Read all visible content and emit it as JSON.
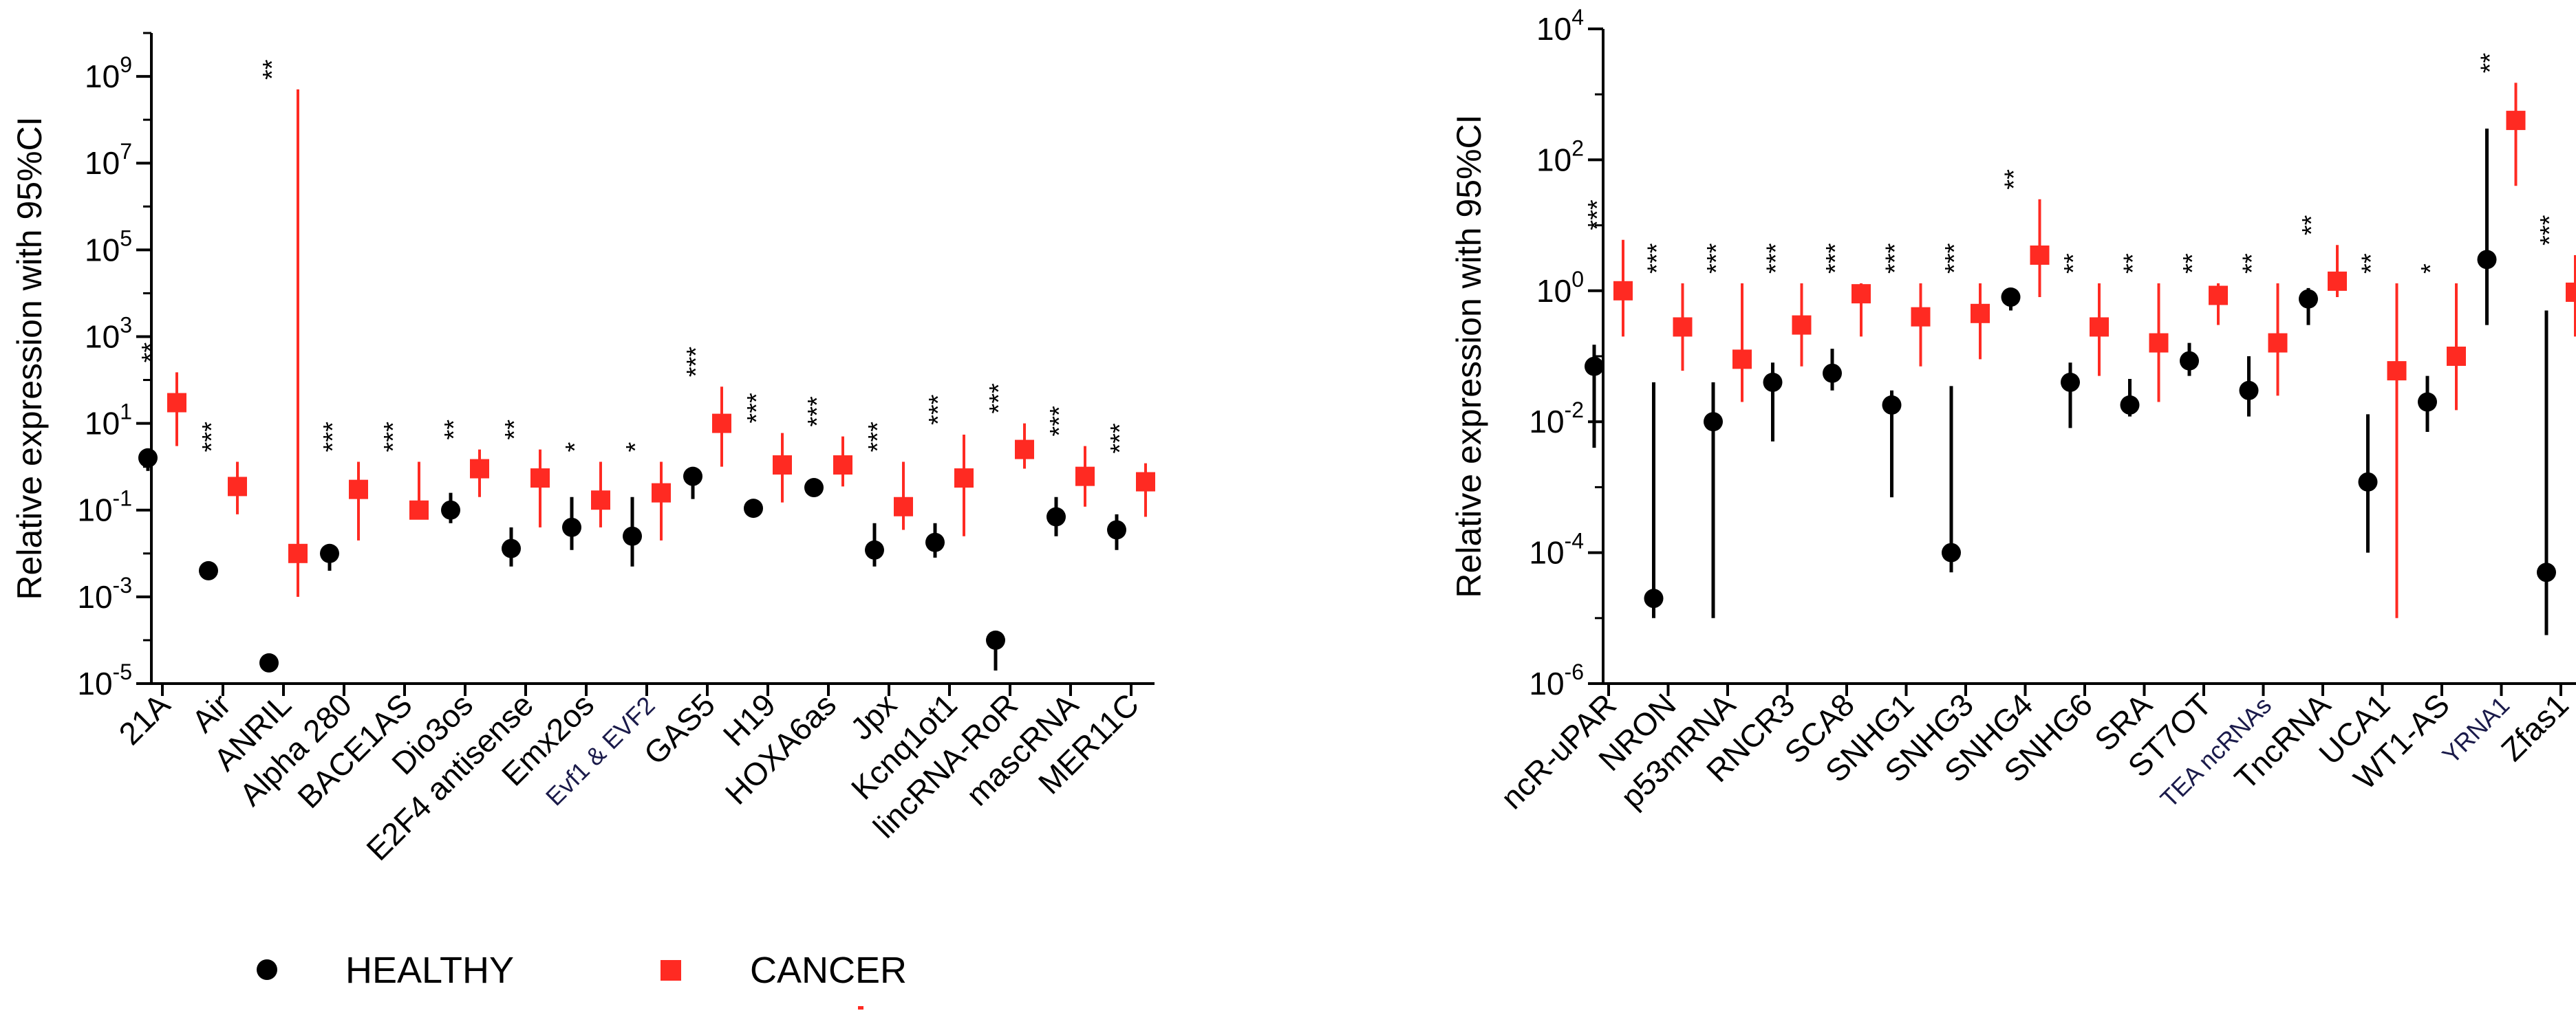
{
  "legend": {
    "healthy": {
      "label": "HEALTHY",
      "color": "#000000",
      "marker": "circle"
    },
    "cancer": {
      "label": "CANCER",
      "color": "#ff2a22",
      "marker": "square"
    }
  },
  "chart_data": [
    {
      "type": "scatter",
      "title": "",
      "ylabel": "Relative expression with 95%CI",
      "yscale": "log10",
      "ylim": [
        1e-05,
        10000000000
      ],
      "yticks": [
        {
          "base": "10",
          "exp": "9",
          "value": 1000000000
        },
        {
          "base": "10",
          "exp": "7",
          "value": 10000000
        },
        {
          "base": "10",
          "exp": "5",
          "value": 100000
        },
        {
          "base": "10",
          "exp": "3",
          "value": 1000
        },
        {
          "base": "10",
          "exp": "1",
          "value": 10
        },
        {
          "base": "10",
          "exp": "-1",
          "value": 0.1
        },
        {
          "base": "10",
          "exp": "-3",
          "value": 0.001
        },
        {
          "base": "10",
          "exp": "-5",
          "value": 1e-05
        }
      ],
      "categories": [
        "21A",
        "Air",
        "ANRIL",
        "Alpha 280",
        "BACE1AS",
        "Dio3os",
        "E2F4 antisense",
        "Emx2os",
        "Evf1 & EVF2",
        "GAS5",
        "H19",
        "HOXA6as",
        "Jpx",
        "Kcnq1ot1",
        "lincRNA-RoR",
        "mascRNA",
        "MER11C"
      ],
      "thin_label_categories": [
        "Evf1 & EVF2"
      ],
      "significance": [
        "**",
        "***",
        "**",
        "***",
        "***",
        "**",
        "**",
        "*",
        "*",
        "***",
        "***",
        "***",
        "***",
        "***",
        "***",
        "***",
        "***"
      ],
      "series": [
        {
          "name": "HEALTHY",
          "values": [
            1.6,
            0.004,
            3e-05,
            0.01,
            null,
            0.1,
            0.013,
            0.04,
            0.025,
            0.6,
            0.11,
            0.33,
            0.012,
            0.018,
            0.0001,
            0.07,
            0.035
          ],
          "ci_low": [
            0.8,
            0.0025,
            null,
            0.004,
            null,
            0.05,
            0.005,
            0.012,
            0.005,
            0.18,
            null,
            null,
            0.005,
            0.008,
            2e-05,
            0.025,
            0.012
          ],
          "ci_high": [
            2.5,
            0.006,
            null,
            0.015,
            null,
            0.25,
            0.04,
            0.2,
            0.2,
            0.9,
            null,
            null,
            0.05,
            0.05,
            null,
            0.2,
            0.08
          ]
        },
        {
          "name": "CANCER",
          "values": [
            30,
            0.35,
            0.01,
            0.3,
            0.1,
            0.9,
            0.55,
            0.17,
            0.25,
            10,
            1.1,
            1.1,
            0.12,
            0.55,
            2.5,
            0.6,
            0.45
          ],
          "ci_low": [
            3,
            0.08,
            0.001,
            0.02,
            null,
            0.2,
            0.04,
            0.04,
            0.02,
            1,
            0.15,
            0.35,
            0.035,
            0.025,
            0.9,
            0.12,
            0.07
          ],
          "ci_high": [
            150,
            1.3,
            500000000,
            1.3,
            1.3,
            2.5,
            2.5,
            1.3,
            1.3,
            70,
            6,
            5,
            1.3,
            5.5,
            10,
            3,
            1.2
          ]
        }
      ]
    },
    {
      "type": "scatter",
      "title": "",
      "ylabel": "Relative expression with 95%CI",
      "yscale": "log10",
      "ylim": [
        1e-06,
        10000
      ],
      "yticks": [
        {
          "base": "10",
          "exp": "4",
          "value": 10000
        },
        {
          "base": "10",
          "exp": "2",
          "value": 100
        },
        {
          "base": "10",
          "exp": "0",
          "value": 1
        },
        {
          "base": "10",
          "exp": "-2",
          "value": 0.01
        },
        {
          "base": "10",
          "exp": "-4",
          "value": 0.0001
        },
        {
          "base": "10",
          "exp": "-6",
          "value": 1e-06
        }
      ],
      "categories": [
        "ncR-uPAR",
        "NRON",
        "p53mRNA",
        "RNCR3",
        "SCA8",
        "SNHG1",
        "SNHG3",
        "SNHG4",
        "SNHG6",
        "SRA",
        "ST7OT",
        "TEA ncRNAs",
        "TncRNA",
        "UCA1",
        "WT1-AS",
        "YRNA1",
        "Zfas1"
      ],
      "thin_label_categories": [
        "TEA ncRNAs",
        "YRNA1"
      ],
      "significance": [
        "***",
        "***",
        "***",
        "***",
        "***",
        "***",
        "***",
        "**",
        "**",
        "**",
        "**",
        "**",
        "**",
        "**",
        "*",
        "**",
        "***"
      ],
      "series": [
        {
          "name": "HEALTHY",
          "values": [
            0.07,
            2e-05,
            0.01,
            0.04,
            0.055,
            0.018,
            0.0001,
            0.8,
            0.04,
            0.018,
            0.085,
            0.03,
            0.75,
            0.0012,
            0.02,
            3,
            5e-05
          ],
          "ci_low": [
            0.004,
            1e-05,
            1e-05,
            0.005,
            0.03,
            0.0007,
            5e-05,
            0.5,
            0.008,
            0.012,
            0.05,
            0.012,
            0.3,
            0.0001,
            0.007,
            0.3,
            5.5e-06
          ],
          "ci_high": [
            0.15,
            0.04,
            0.04,
            0.08,
            0.13,
            0.03,
            0.035,
            1.1,
            0.08,
            0.045,
            0.16,
            0.1,
            1.1,
            0.013,
            0.05,
            300,
            0.5
          ]
        },
        {
          "name": "CANCER",
          "values": [
            1,
            0.28,
            0.09,
            0.3,
            0.9,
            0.4,
            0.45,
            3.5,
            0.28,
            0.16,
            0.85,
            0.16,
            1.4,
            0.06,
            0.1,
            400,
            0.95
          ],
          "ci_low": [
            0.2,
            0.06,
            0.02,
            0.07,
            0.2,
            0.07,
            0.09,
            0.8,
            0.05,
            0.02,
            0.3,
            0.025,
            0.8,
            1e-05,
            0.015,
            40,
            0.2
          ],
          "ci_high": [
            6,
            1.3,
            1.3,
            1.3,
            1.3,
            1.3,
            1.3,
            25,
            1.3,
            1.3,
            1.3,
            1.3,
            5,
            1.3,
            1.3,
            1500,
            3.5
          ]
        }
      ]
    }
  ]
}
